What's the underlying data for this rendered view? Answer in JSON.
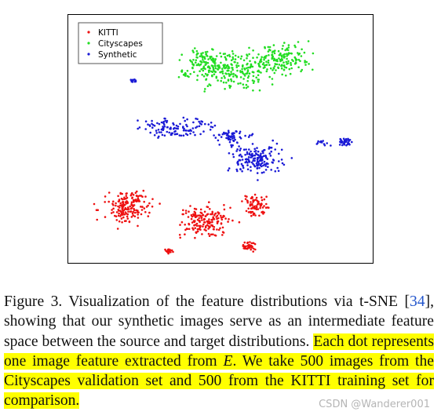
{
  "figure": {
    "legend": [
      {
        "label": "KITTI",
        "color": "#ee1111"
      },
      {
        "label": "Cityscapes",
        "color": "#22dd22"
      },
      {
        "label": "Synthetic",
        "color": "#1a1ad6"
      }
    ]
  },
  "chart_data": {
    "type": "scatter",
    "title": "",
    "xlabel": "",
    "ylabel": "",
    "grid": false,
    "legend_position": "top-left",
    "note": "t-SNE embedding; axes are unlabeled and have no ticks. Approximate cluster layout only.",
    "series": [
      {
        "name": "KITTI",
        "color": "#ee1111",
        "points_count": 500
      },
      {
        "name": "Cityscapes",
        "color": "#22dd22",
        "points_count": 500
      },
      {
        "name": "Synthetic",
        "color": "#1a1ad6"
      }
    ]
  },
  "caption": {
    "label": "Figure 3.",
    "text_1": "Visualization of the feature distributions via t-SNE [",
    "ref": "34",
    "text_2": "], showing that our synthetic images serve as an intermediate feature space between the source and target distributions.",
    "hl_1": "Each dot represents one image feature extracted from ",
    "symbol": "E",
    "hl_2": ". We take 500 images from the Cityscapes validation set and 500 from the KITTI training set for comparison."
  },
  "watermark": "CSDN @Wanderer001"
}
